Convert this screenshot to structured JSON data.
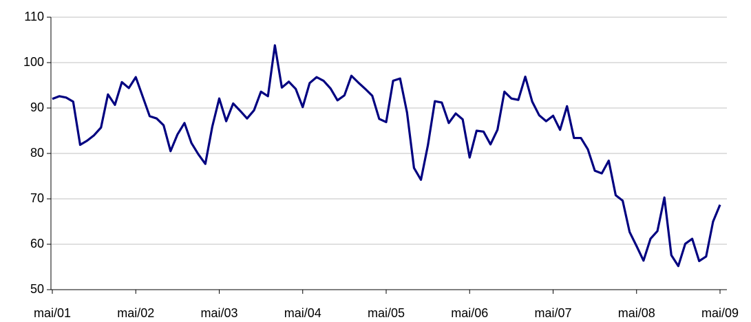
{
  "chart_data": {
    "type": "line",
    "categories": [
      "mai/01",
      null,
      null,
      null,
      null,
      null,
      null,
      null,
      null,
      null,
      null,
      null,
      "mai/02",
      null,
      null,
      null,
      null,
      null,
      null,
      null,
      null,
      null,
      null,
      null,
      "mai/03",
      null,
      null,
      null,
      null,
      null,
      null,
      null,
      null,
      null,
      null,
      null,
      "mai/04",
      null,
      null,
      null,
      null,
      null,
      null,
      null,
      null,
      null,
      null,
      null,
      "mai/05",
      null,
      null,
      null,
      null,
      null,
      null,
      null,
      null,
      null,
      null,
      null,
      "mai/06",
      null,
      null,
      null,
      null,
      null,
      null,
      null,
      null,
      null,
      null,
      null,
      "mai/07",
      null,
      null,
      null,
      null,
      null,
      null,
      null,
      null,
      null,
      null,
      null,
      "mai/08",
      null,
      null,
      null,
      null,
      null,
      null,
      null,
      null,
      null,
      null,
      null,
      "mai/09"
    ],
    "values": [
      92,
      92.6,
      92.3,
      91.4,
      81.9,
      82.8,
      84,
      85.7,
      93,
      90.7,
      95.7,
      94.4,
      96.8,
      92.5,
      88.2,
      87.7,
      86.2,
      80.5,
      84.2,
      86.7,
      82.3,
      79.8,
      77.7,
      85.9,
      92.1,
      87.1,
      91,
      89.4,
      87.7,
      89.5,
      93.6,
      92.6,
      103.8,
      94.5,
      95.8,
      94.2,
      90.2,
      95.5,
      96.8,
      96,
      94.3,
      91.7,
      92.8,
      97.1,
      95.6,
      94.2,
      92.7,
      87.6,
      86.9,
      96,
      96.5,
      89,
      76.8,
      74.2,
      81.8,
      91.5,
      91.2,
      86.7,
      88.8,
      87.5,
      79.1,
      85,
      84.8,
      82,
      85.2,
      93.6,
      92.1,
      91.8,
      96.9,
      91.4,
      88.4,
      87.1,
      88.3,
      85.2,
      90.4,
      83.4,
      83.4,
      80.9,
      76.2,
      75.6,
      78.4,
      70.8,
      69.6,
      62.7,
      59.6,
      56.4,
      61.2,
      62.9,
      70.3,
      57.6,
      55.2,
      60.1,
      61.2,
      56.3,
      57.3,
      65,
      68.7
    ],
    "color": "#000080",
    "ylim": [
      50,
      110
    ],
    "yticks": [
      50,
      60,
      70,
      80,
      90,
      100,
      110
    ],
    "grid": true
  }
}
